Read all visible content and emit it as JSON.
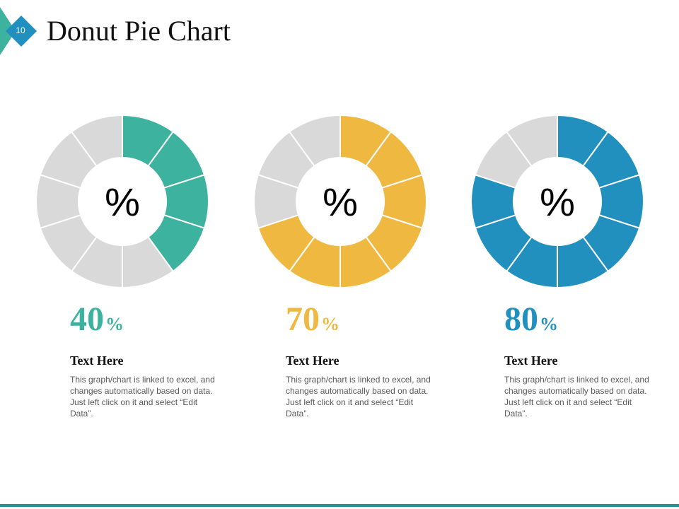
{
  "slide": {
    "number": "10",
    "title": "Donut Pie Chart"
  },
  "colors": {
    "teal": "#3db29e",
    "yellow": "#efb841",
    "blue": "#2190bf",
    "gray": "#d9d9d9",
    "badge_light": "#3db29e",
    "badge_dark": "#2190bf",
    "rule": "#2a8f95"
  },
  "chart_data": [
    {
      "type": "pie",
      "style": "donut",
      "segments": 10,
      "filled_segments": 4,
      "value": 40,
      "center_label": "%",
      "color": "#3db29e",
      "remainder_color": "#d9d9d9",
      "value_label": {
        "number": "40",
        "unit": "%"
      },
      "heading": "Text Here",
      "description": "This graph/chart is linked to excel, and changes automatically based on data. Just left click on it and select “Edit Data”."
    },
    {
      "type": "pie",
      "style": "donut",
      "segments": 10,
      "filled_segments": 7,
      "value": 70,
      "center_label": "%",
      "color": "#efb841",
      "remainder_color": "#d9d9d9",
      "value_label": {
        "number": "70",
        "unit": "%"
      },
      "heading": "Text Here",
      "description": "This graph/chart is linked to excel, and changes automatically based on data. Just left click on it and select “Edit Data”."
    },
    {
      "type": "pie",
      "style": "donut",
      "segments": 10,
      "filled_segments": 8,
      "value": 80,
      "center_label": "%",
      "color": "#2190bf",
      "remainder_color": "#d9d9d9",
      "value_label": {
        "number": "80",
        "unit": "%"
      },
      "heading": "Text Here",
      "description": "This graph/chart is linked to excel, and changes automatically based on data. Just left click on it and select “Edit Data”."
    }
  ]
}
